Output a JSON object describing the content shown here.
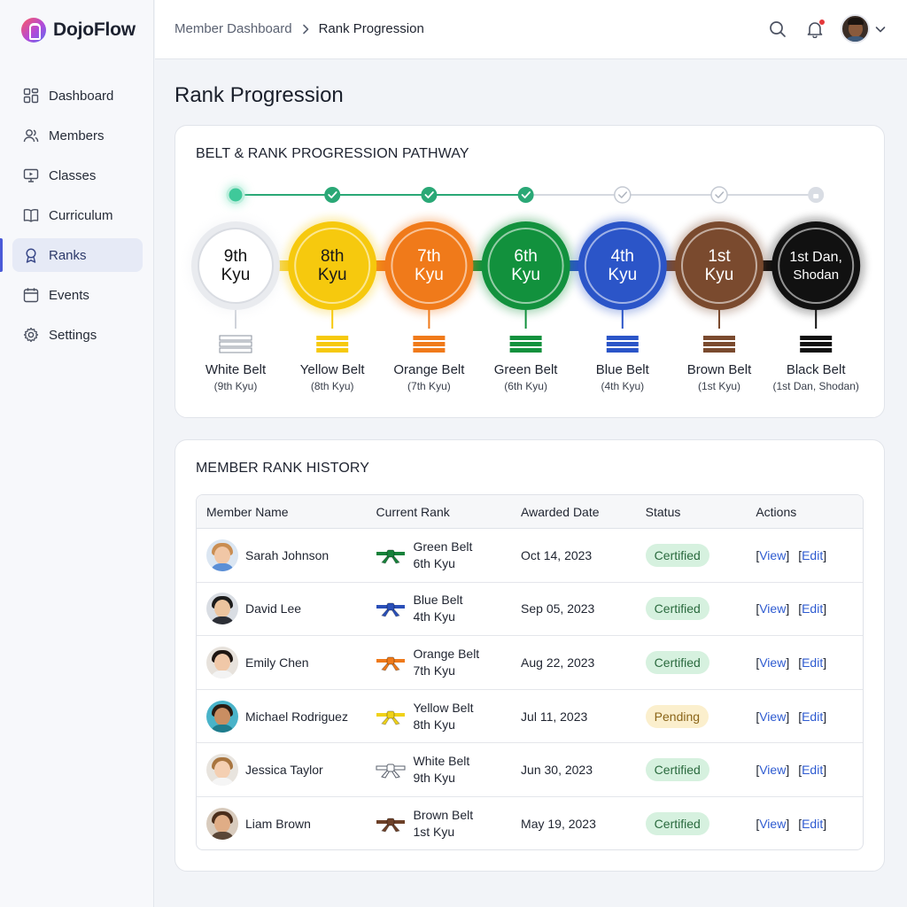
{
  "brand": {
    "name": "DojoFlow"
  },
  "sidebar": {
    "items": [
      {
        "label": "Dashboard",
        "icon": "grid-icon"
      },
      {
        "label": "Members",
        "icon": "users-icon"
      },
      {
        "label": "Classes",
        "icon": "monitor-icon"
      },
      {
        "label": "Curriculum",
        "icon": "book-icon"
      },
      {
        "label": "Ranks",
        "icon": "award-icon",
        "active": true
      },
      {
        "label": "Events",
        "icon": "calendar-icon"
      },
      {
        "label": "Settings",
        "icon": "gear-icon"
      }
    ]
  },
  "header": {
    "breadcrumb": [
      "Member Dashboard",
      "Rank Progression"
    ]
  },
  "page": {
    "title": "Rank Progression"
  },
  "pathway": {
    "title": "BELT & RANK PROGRESSION PATHWAY",
    "ranks": [
      {
        "line1": "9th",
        "line2": "Kyu",
        "belt": "White Belt",
        "sub": "(9th Kyu)",
        "color": "#ffffff",
        "text_color": "#111111",
        "state": "current"
      },
      {
        "line1": "8th",
        "line2": "Kyu",
        "belt": "Yellow Belt",
        "sub": "(8th Kyu)",
        "color": "#f6c90e",
        "text_color": "#1a1a1a",
        "state": "done"
      },
      {
        "line1": "7th",
        "line2": "Kyu",
        "belt": "Orange Belt",
        "sub": "(7th Kyu)",
        "color": "#f07a1a",
        "text_color": "#ffffff",
        "state": "done"
      },
      {
        "line1": "6th",
        "line2": "Kyu",
        "belt": "Green Belt",
        "sub": "(6th Kyu)",
        "color": "#12913d",
        "text_color": "#ffffff",
        "state": "done"
      },
      {
        "line1": "4th",
        "line2": "Kyu",
        "belt": "Blue Belt",
        "sub": "(4th Kyu)",
        "color": "#2b55c8",
        "text_color": "#ffffff",
        "state": "upcoming"
      },
      {
        "line1": "1st",
        "line2": "Kyu",
        "belt": "Brown Belt",
        "sub": "(1st Kyu)",
        "color": "#7a4a2e",
        "text_color": "#ffffff",
        "state": "upcoming"
      },
      {
        "line1": "1st Dan,",
        "line2": "Shodan",
        "belt": "Black Belt",
        "sub": "(1st Dan, Shodan)",
        "color": "#111111",
        "text_color": "#ffffff",
        "state": "locked"
      }
    ]
  },
  "history": {
    "title": "MEMBER RANK HISTORY",
    "columns": [
      "Member Name",
      "Current Rank",
      "Awarded Date",
      "Status",
      "Actions"
    ],
    "view_label": "View",
    "edit_label": "Edit",
    "rows": [
      {
        "name": "Sarah Johnson",
        "belt": "Green Belt",
        "kyu": "6th Kyu",
        "belt_color": "#16813a",
        "date": "Oct 14, 2023",
        "status": "Certified",
        "status_type": "certified",
        "skin": "#f1c7a6",
        "hair": "#c98d52",
        "shirt": "#5b8fd6",
        "bg": "#dbe6f2"
      },
      {
        "name": "David Lee",
        "belt": "Blue Belt",
        "kyu": "4th Kyu",
        "belt_color": "#2a4fb8",
        "date": "Sep 05, 2023",
        "status": "Certified",
        "status_type": "certified",
        "skin": "#ecc49e",
        "hair": "#1c1c1c",
        "shirt": "#2c2f36",
        "bg": "#d9dde3"
      },
      {
        "name": "Emily Chen",
        "belt": "Orange Belt",
        "kyu": "7th Kyu",
        "belt_color": "#ef7a1a",
        "date": "Aug 22, 2023",
        "status": "Certified",
        "status_type": "certified",
        "skin": "#f0c8a8",
        "hair": "#1e1612",
        "shirt": "#f3f3f3",
        "bg": "#e7e2dc"
      },
      {
        "name": "Michael Rodriguez",
        "belt": "Yellow Belt",
        "kyu": "8th Kyu",
        "belt_color": "#f0d21a",
        "date": "Jul 11, 2023",
        "status": "Pending",
        "status_type": "pending",
        "skin": "#c98e62",
        "hair": "#2a1b12",
        "shirt": "#1f7c8c",
        "bg": "#49b3c9"
      },
      {
        "name": "Jessica Taylor",
        "belt": "White Belt",
        "kyu": "9th Kyu",
        "belt_color": "#ffffff",
        "date": "Jun 30, 2023",
        "status": "Certified",
        "status_type": "certified",
        "skin": "#f4cfb2",
        "hair": "#a8753f",
        "shirt": "#f5f5f5",
        "bg": "#e8e4de"
      },
      {
        "name": "Liam Brown",
        "belt": "Brown Belt",
        "kyu": "1st Kyu",
        "belt_color": "#6d4028",
        "date": "May 19, 2023",
        "status": "Certified",
        "status_type": "certified",
        "skin": "#e0ad86",
        "hair": "#4a2d1a",
        "shirt": "#5a4637",
        "bg": "#d8cbbd"
      }
    ]
  }
}
